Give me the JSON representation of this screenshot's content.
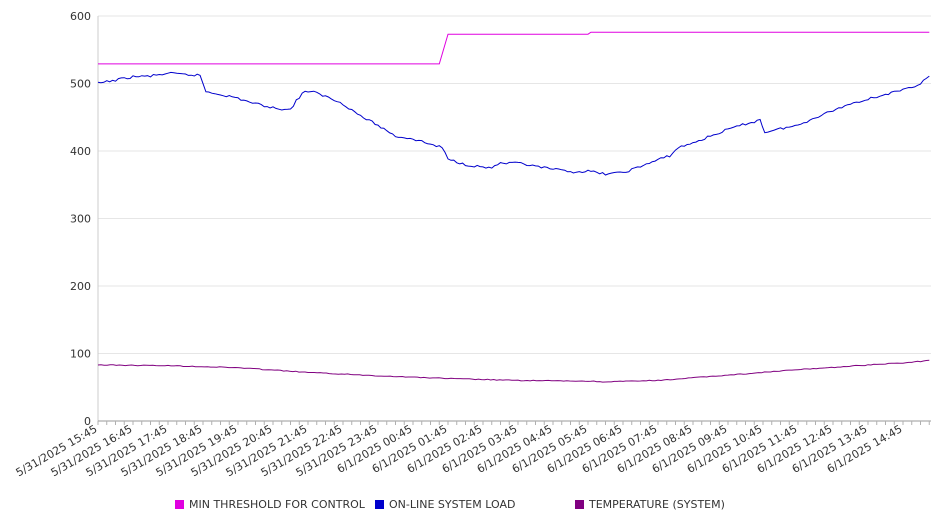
{
  "chart_data": {
    "type": "line",
    "title": "",
    "xlabel": "",
    "ylabel": "",
    "ylim": [
      0,
      600
    ],
    "yticks": [
      0,
      100,
      200,
      300,
      400,
      500,
      600
    ],
    "grid": true,
    "legend_position": "bottom",
    "x_tick_labels": [
      "5/31/2025 15:45",
      "5/31/2025 16:45",
      "5/31/2025 17:45",
      "5/31/2025 18:45",
      "5/31/2025 19:45",
      "5/31/2025 20:45",
      "5/31/2025 21:45",
      "5/31/2025 22:45",
      "5/31/2025 23:45",
      "6/1/2025 00:45",
      "6/1/2025 01:45",
      "6/1/2025 02:45",
      "6/1/2025 03:45",
      "6/1/2025 04:45",
      "6/1/2025 05:45",
      "6/1/2025 06:45",
      "6/1/2025 07:45",
      "6/1/2025 08:45",
      "6/1/2025 09:45",
      "6/1/2025 10:45",
      "6/1/2025 11:45",
      "6/1/2025 12:45",
      "6/1/2025 13:45",
      "6/1/2025 14:45"
    ],
    "series": [
      {
        "name": "MIN THRESHOLD FOR CONTROL",
        "color": "#e000e0",
        "points": [
          [
            "5/31/2025 15:45",
            529
          ],
          [
            "6/1/2025 01:30",
            529
          ],
          [
            "6/1/2025 01:45",
            573
          ],
          [
            "6/1/2025 05:45",
            573
          ],
          [
            "6/1/2025 05:50",
            576
          ],
          [
            "6/1/2025 15:30",
            576
          ]
        ]
      },
      {
        "name": "ON-LINE SYSTEM LOAD",
        "color": "#0000cc",
        "points": [
          [
            "5/31/2025 15:45",
            500
          ],
          [
            "5/31/2025 16:15",
            505
          ],
          [
            "5/31/2025 16:45",
            510
          ],
          [
            "5/31/2025 17:15",
            511
          ],
          [
            "5/31/2025 17:45",
            515
          ],
          [
            "5/31/2025 18:15",
            513
          ],
          [
            "5/31/2025 18:40",
            512
          ],
          [
            "5/31/2025 18:50",
            488
          ],
          [
            "5/31/2025 19:15",
            484
          ],
          [
            "5/31/2025 19:45",
            478
          ],
          [
            "5/31/2025 20:15",
            470
          ],
          [
            "5/31/2025 20:45",
            464
          ],
          [
            "5/31/2025 21:15",
            461
          ],
          [
            "5/31/2025 21:25",
            475
          ],
          [
            "5/31/2025 21:40",
            489
          ],
          [
            "5/31/2025 21:55",
            487
          ],
          [
            "5/31/2025 22:15",
            481
          ],
          [
            "5/31/2025 22:45",
            470
          ],
          [
            "5/31/2025 23:15",
            452
          ],
          [
            "5/31/2025 23:45",
            438
          ],
          [
            "6/1/2025 00:15",
            422
          ],
          [
            "6/1/2025 00:45",
            418
          ],
          [
            "6/1/2025 01:15",
            410
          ],
          [
            "6/1/2025 01:35",
            405
          ],
          [
            "6/1/2025 01:45",
            388
          ],
          [
            "6/1/2025 02:15",
            380
          ],
          [
            "6/1/2025 02:45",
            376
          ],
          [
            "6/1/2025 03:00",
            375
          ],
          [
            "6/1/2025 03:10",
            381
          ],
          [
            "6/1/2025 03:45",
            382
          ],
          [
            "6/1/2025 04:15",
            377
          ],
          [
            "6/1/2025 04:45",
            373
          ],
          [
            "6/1/2025 05:15",
            369
          ],
          [
            "6/1/2025 05:45",
            370
          ],
          [
            "6/1/2025 06:15",
            366
          ],
          [
            "6/1/2025 06:45",
            368
          ],
          [
            "6/1/2025 07:15",
            377
          ],
          [
            "6/1/2025 07:45",
            387
          ],
          [
            "6/1/2025 08:05",
            393
          ],
          [
            "6/1/2025 08:20",
            405
          ],
          [
            "6/1/2025 08:45",
            412
          ],
          [
            "6/1/2025 09:15",
            422
          ],
          [
            "6/1/2025 09:45",
            432
          ],
          [
            "6/1/2025 10:15",
            440
          ],
          [
            "6/1/2025 10:40",
            446
          ],
          [
            "6/1/2025 10:48",
            428
          ],
          [
            "6/1/2025 11:15",
            433
          ],
          [
            "6/1/2025 11:45",
            438
          ],
          [
            "6/1/2025 12:15",
            450
          ],
          [
            "6/1/2025 12:45",
            460
          ],
          [
            "6/1/2025 13:15",
            470
          ],
          [
            "6/1/2025 13:45",
            477
          ],
          [
            "6/1/2025 14:15",
            484
          ],
          [
            "6/1/2025 14:45",
            490
          ],
          [
            "6/1/2025 15:15",
            500
          ],
          [
            "6/1/2025 15:30",
            511
          ]
        ]
      },
      {
        "name": "TEMPERATURE (SYSTEM)",
        "color": "#800080",
        "points": [
          [
            "5/31/2025 15:45",
            83
          ],
          [
            "5/31/2025 17:45",
            82
          ],
          [
            "5/31/2025 19:45",
            79
          ],
          [
            "5/31/2025 21:45",
            72
          ],
          [
            "5/31/2025 23:45",
            67
          ],
          [
            "6/1/2025 01:45",
            63
          ],
          [
            "6/1/2025 03:45",
            60
          ],
          [
            "6/1/2025 05:45",
            59
          ],
          [
            "6/1/2025 06:15",
            58
          ],
          [
            "6/1/2025 07:45",
            60
          ],
          [
            "6/1/2025 09:45",
            68
          ],
          [
            "6/1/2025 11:45",
            76
          ],
          [
            "6/1/2025 13:45",
            83
          ],
          [
            "6/1/2025 15:00",
            87
          ],
          [
            "6/1/2025 15:30",
            90
          ]
        ]
      }
    ]
  }
}
